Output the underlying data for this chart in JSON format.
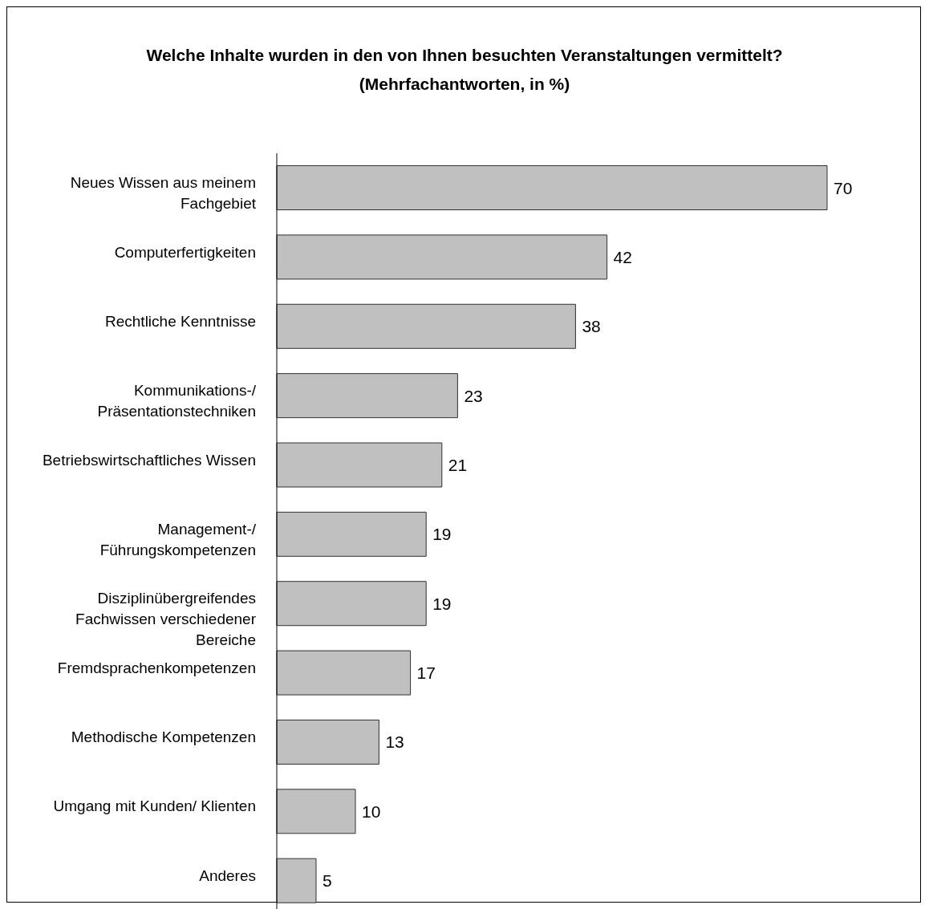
{
  "chart_data": {
    "type": "bar",
    "orientation": "horizontal",
    "title": "Welche Inhalte wurden in den von Ihnen besuchten Veranstaltungen vermittelt? (Mehrfachantworten, in %)",
    "categories": [
      "Neues Wissen aus meinem Fachgebiet",
      "Computerfertigkeiten",
      "Rechtliche Kenntnisse",
      "Kommunikations-/ Präsentationstechniken",
      "Betriebswirtschaftliches Wissen",
      "Management-/ Führungskompetenzen",
      "Disziplinübergreifendes Fachwissen verschiedener Bereiche",
      "Fremdsprachenkompetenzen",
      "Methodische Kompetenzen",
      "Umgang mit Kunden/ Klienten",
      "Anderes"
    ],
    "values": [
      70,
      42,
      38,
      23,
      21,
      19,
      19,
      17,
      13,
      10,
      5
    ],
    "color": "#c0c0c0",
    "data_labels": true
  }
}
